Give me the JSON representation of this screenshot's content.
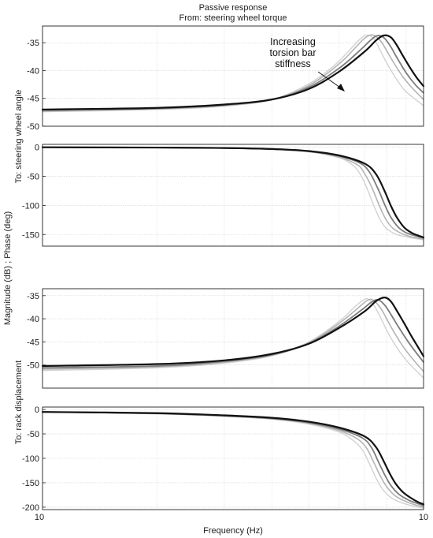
{
  "header": {
    "title_line1": "Passive response",
    "title_line2": "From: steering wheel torque"
  },
  "labels": {
    "ylabel_main": "Magnitude (dB) ; Phase (deg)",
    "ylabel_top": "To: steering wheel angle",
    "ylabel_bottom": "To: rack displacement",
    "xlabel": "Frequency (Hz)"
  },
  "annotation": {
    "lines": [
      "Increasing",
      "torsion bar",
      "stiffness"
    ]
  },
  "chart_data": {
    "type": "line",
    "x_scale": "log",
    "xlim": [
      1,
      10
    ],
    "x_tick_labels": [
      "10",
      "10"
    ],
    "series_colors": [
      "#d2d2d2",
      "#b4b4b4",
      "#7c7c7c",
      "#111111"
    ],
    "panels": [
      {
        "id": "wheel-angle-magnitude",
        "ylim": [
          -50,
          -32
        ],
        "yticks": [
          -50,
          -45,
          -40,
          -35
        ],
        "series": [
          {
            "f": [
              1.0,
              2.0,
              3.0,
              4.0,
              5.0,
              5.8,
              6.3,
              6.8,
              7.1,
              7.4,
              7.7,
              8.0,
              8.5,
              9.0,
              10.0
            ],
            "y": [
              -47.4,
              -47.0,
              -46.4,
              -45.2,
              -42.4,
              -39.2,
              -36.8,
              -34.4,
              -33.6,
              -34.3,
              -36.4,
              -38.6,
              -41.6,
              -43.8,
              -46.3
            ]
          },
          {
            "f": [
              1.0,
              2.0,
              3.0,
              4.0,
              5.0,
              6.0,
              6.6,
              7.0,
              7.35,
              7.7,
              8.0,
              8.3,
              8.8,
              9.3,
              10.0
            ],
            "y": [
              -47.3,
              -46.9,
              -46.3,
              -45.2,
              -42.7,
              -38.8,
              -36.0,
              -34.2,
              -33.6,
              -34.6,
              -36.4,
              -38.3,
              -41.0,
              -43.0,
              -45.2
            ]
          },
          {
            "f": [
              1.0,
              2.0,
              3.0,
              4.0,
              5.0,
              6.0,
              6.8,
              7.3,
              7.6,
              7.9,
              8.2,
              8.5,
              9.0,
              9.5,
              10.0
            ],
            "y": [
              -47.1,
              -46.8,
              -46.2,
              -45.2,
              -43.0,
              -39.6,
              -36.4,
              -34.4,
              -33.7,
              -34.2,
              -35.7,
              -37.6,
              -40.4,
              -42.5,
              -44.0
            ]
          },
          {
            "f": [
              1.0,
              2.0,
              3.0,
              4.0,
              5.0,
              6.0,
              7.0,
              7.5,
              7.85,
              8.2,
              8.5,
              8.8,
              9.2,
              9.6,
              10.0
            ],
            "y": [
              -47.0,
              -46.7,
              -46.1,
              -45.2,
              -43.3,
              -40.2,
              -36.6,
              -34.6,
              -33.7,
              -34.0,
              -35.4,
              -37.2,
              -39.4,
              -41.3,
              -42.8
            ]
          }
        ]
      },
      {
        "id": "wheel-angle-phase",
        "ylim": [
          -170,
          5
        ],
        "yticks": [
          -150,
          -100,
          -50,
          0
        ],
        "series": [
          {
            "f": [
              1.0,
              2.0,
              3.0,
              4.0,
              5.0,
              6.0,
              6.5,
              6.8,
              7.1,
              7.4,
              7.7,
              8.0,
              8.5,
              9.0,
              9.5,
              10.0
            ],
            "y": [
              0,
              -0.5,
              -1.5,
              -3.5,
              -8,
              -18,
              -30,
              -45,
              -70,
              -100,
              -125,
              -140,
              -150,
              -154,
              -157,
              -159
            ]
          },
          {
            "f": [
              1.0,
              2.0,
              3.0,
              4.0,
              5.0,
              6.0,
              6.7,
              7.0,
              7.35,
              7.65,
              7.95,
              8.3,
              8.8,
              9.3,
              10.0
            ],
            "y": [
              0,
              -0.5,
              -1.5,
              -3.3,
              -7.5,
              -17,
              -30,
              -45,
              -72,
              -100,
              -123,
              -139,
              -149,
              -154,
              -158
            ]
          },
          {
            "f": [
              1.0,
              2.0,
              3.0,
              4.0,
              5.0,
              6.0,
              6.8,
              7.2,
              7.6,
              7.9,
              8.2,
              8.6,
              9.0,
              9.5,
              10.0
            ],
            "y": [
              0,
              -0.5,
              -1.4,
              -3.2,
              -7,
              -15,
              -27,
              -42,
              -72,
              -98,
              -120,
              -138,
              -147,
              -152,
              -156
            ]
          },
          {
            "f": [
              1.0,
              2.0,
              3.0,
              4.0,
              5.0,
              6.0,
              7.0,
              7.5,
              7.9,
              8.2,
              8.5,
              8.9,
              9.3,
              9.7,
              10.0
            ],
            "y": [
              0,
              -0.5,
              -1.3,
              -3,
              -6.5,
              -14,
              -28,
              -46,
              -75,
              -100,
              -120,
              -138,
              -147,
              -152,
              -155
            ]
          }
        ]
      },
      {
        "id": "rack-displacement-magnitude",
        "ylim": [
          -55,
          -33.5
        ],
        "yticks": [
          -50,
          -45,
          -40,
          -35
        ],
        "series": [
          {
            "f": [
              1.0,
              2.0,
              3.0,
              4.0,
              5.0,
              6.0,
              6.6,
              7.0,
              7.2,
              7.5,
              7.8,
              8.1,
              8.6,
              9.1,
              10.0
            ],
            "y": [
              -51.2,
              -50.6,
              -49.6,
              -48.0,
              -45.0,
              -40.6,
              -37.4,
              -35.8,
              -35.9,
              -37.8,
              -40.6,
              -43.3,
              -46.8,
              -49.4,
              -52.8
            ]
          },
          {
            "f": [
              1.0,
              2.0,
              3.0,
              4.0,
              5.0,
              6.0,
              6.7,
              7.1,
              7.35,
              7.7,
              8.0,
              8.3,
              8.8,
              9.3,
              10.0
            ],
            "y": [
              -50.9,
              -50.4,
              -49.4,
              -47.9,
              -45.2,
              -41.0,
              -37.8,
              -36.1,
              -35.9,
              -37.6,
              -40.0,
              -42.4,
              -45.8,
              -48.4,
              -51.4
            ]
          },
          {
            "f": [
              1.0,
              2.0,
              3.0,
              4.0,
              5.0,
              6.0,
              6.9,
              7.3,
              7.6,
              7.9,
              8.2,
              8.6,
              9.1,
              9.6,
              10.0
            ],
            "y": [
              -50.6,
              -50.2,
              -49.2,
              -47.8,
              -45.3,
              -41.6,
              -38.0,
              -36.4,
              -35.9,
              -37.0,
              -39.0,
              -41.8,
              -44.9,
              -47.5,
              -49.4
            ]
          },
          {
            "f": [
              1.0,
              2.0,
              3.0,
              4.0,
              5.0,
              6.0,
              7.0,
              7.5,
              7.9,
              8.2,
              8.5,
              8.9,
              9.3,
              9.7,
              10.0
            ],
            "y": [
              -50.2,
              -49.8,
              -49.0,
              -47.6,
              -45.4,
              -42.0,
              -38.4,
              -36.2,
              -35.4,
              -36.2,
              -38.2,
              -41.0,
              -43.8,
              -46.3,
              -48.1
            ]
          }
        ]
      },
      {
        "id": "rack-displacement-phase",
        "ylim": [
          -205,
          5
        ],
        "yticks": [
          -200,
          -150,
          -100,
          -50,
          0
        ],
        "series": [
          {
            "f": [
              1.0,
              2.0,
              3.0,
              4.0,
              5.0,
              6.0,
              6.5,
              6.9,
              7.2,
              7.5,
              7.8,
              8.2,
              8.7,
              9.2,
              10.0
            ],
            "y": [
              -5,
              -9,
              -14,
              -20,
              -30,
              -46,
              -62,
              -82,
              -110,
              -140,
              -163,
              -180,
              -190,
              -196,
              -202
            ]
          },
          {
            "f": [
              1.0,
              2.0,
              3.0,
              4.0,
              5.0,
              6.0,
              6.7,
              7.1,
              7.4,
              7.7,
              8.0,
              8.4,
              8.9,
              9.4,
              10.0
            ],
            "y": [
              -5,
              -8.5,
              -13.5,
              -19,
              -28,
              -43,
              -60,
              -80,
              -108,
              -136,
              -158,
              -176,
              -187,
              -194,
              -200
            ]
          },
          {
            "f": [
              1.0,
              2.0,
              3.0,
              4.0,
              5.0,
              6.0,
              6.9,
              7.3,
              7.6,
              7.9,
              8.2,
              8.6,
              9.1,
              9.6,
              10.0
            ],
            "y": [
              -5,
              -8,
              -13,
              -18.5,
              -27,
              -40,
              -58,
              -78,
              -106,
              -133,
              -155,
              -173,
              -185,
              -192,
              -197
            ]
          },
          {
            "f": [
              1.0,
              2.0,
              3.0,
              4.0,
              5.0,
              6.0,
              7.0,
              7.5,
              7.85,
              8.15,
              8.45,
              8.85,
              9.3,
              9.7,
              10.0
            ],
            "y": [
              -5,
              -7.5,
              -12,
              -17,
              -25,
              -37,
              -55,
              -77,
              -105,
              -131,
              -152,
              -170,
              -182,
              -190,
              -194
            ]
          }
        ]
      }
    ]
  }
}
